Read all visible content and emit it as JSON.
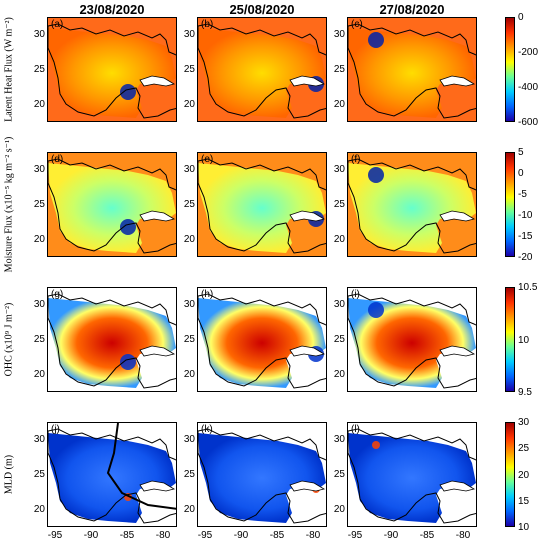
{
  "columns": [
    "23/08/2020",
    "25/08/2020",
    "27/08/2020"
  ],
  "rows": [
    {
      "id": "lhf",
      "ylabel": "Latent Heat Flux (W m⁻²)",
      "panels": [
        "(a)",
        "(b)",
        "(c)"
      ],
      "colorbar": {
        "ticks": [
          "0",
          "-200",
          "-400",
          "-600"
        ],
        "range": [
          -600,
          0
        ],
        "colors": [
          "#1a00a8",
          "#0066ff",
          "#00ccff",
          "#66ff99",
          "#ffff00",
          "#ff9900",
          "#ff3300",
          "#a00000"
        ]
      }
    },
    {
      "id": "mf",
      "ylabel": "Moisture Flux (x10⁻⁵ kg m⁻² s⁻¹)",
      "panels": [
        "(d)",
        "(e)",
        "(f)"
      ],
      "colorbar": {
        "ticks": [
          "5",
          "0",
          "-5",
          "-10",
          "-15",
          "-20"
        ],
        "range": [
          -20,
          5
        ],
        "colors": [
          "#1a00a8",
          "#0066ff",
          "#00ccff",
          "#66ff99",
          "#ffff00",
          "#ff9900",
          "#ff3300",
          "#a00000"
        ]
      }
    },
    {
      "id": "ohc",
      "ylabel": "OHC (x10⁹ J m⁻²)",
      "panels": [
        "(g)",
        "(h)",
        "(i)"
      ],
      "colorbar": {
        "ticks": [
          "10.5",
          "10",
          "9.5"
        ],
        "range": [
          9.5,
          10.5
        ],
        "colors": [
          "#1a00a8",
          "#0066ff",
          "#00ccff",
          "#66ff99",
          "#ffff00",
          "#ff9900",
          "#ff3300",
          "#a00000"
        ]
      }
    },
    {
      "id": "mld",
      "ylabel": "MLD (m)",
      "panels": [
        "(j)",
        "(k)",
        "(l)"
      ],
      "colorbar": {
        "ticks": [
          "30",
          "25",
          "20",
          "15",
          "10"
        ],
        "range": [
          5,
          32
        ],
        "colors": [
          "#1a00a8",
          "#0066ff",
          "#00ccff",
          "#66ff99",
          "#ffff00",
          "#ff9900",
          "#ff3300",
          "#a00000"
        ]
      }
    }
  ],
  "yticks": [
    "30",
    "25",
    "20"
  ],
  "xticks": [
    "-95",
    "-90",
    "-85",
    "-80"
  ]
}
